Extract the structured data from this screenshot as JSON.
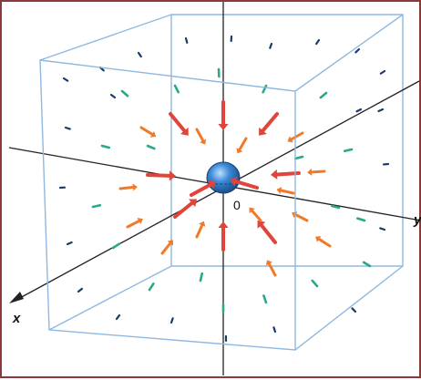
{
  "figure": {
    "origin_label": "0",
    "x_axis_label": "x",
    "y_axis_label": "y",
    "colors": {
      "frame": "#8a3a3a",
      "cube": "#8fb8e0",
      "axis": "#222222",
      "sphere": "#3a8ad6",
      "arrow_strong": "#e0443a",
      "arrow_medium": "#f07a2a",
      "arrow_weak": "#2aa88a",
      "arrow_faint": "#1a3a6a"
    },
    "field": {
      "description_type": "radial field pointing toward a central charge",
      "arrow_kinds": [
        "strong",
        "medium",
        "weak",
        "faint"
      ]
    }
  }
}
